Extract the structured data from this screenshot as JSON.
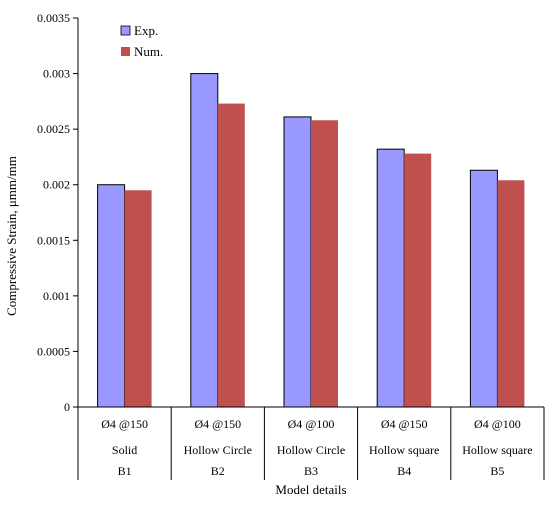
{
  "chart_data": {
    "type": "bar",
    "title": "",
    "xlabel": "Model details",
    "ylabel": "Compressive Strain, μmm/mm",
    "ylim": [
      0,
      0.0035
    ],
    "yticks": [
      0,
      0.0005,
      0.001,
      0.0015,
      0.002,
      0.0025,
      0.003,
      0.0035
    ],
    "ytick_labels": [
      "0",
      "0.0005",
      "0.001",
      "0.0015",
      "0.002",
      "0.0025",
      "0.003",
      "0.0035"
    ],
    "categories": [
      {
        "line1": "Ø4 @150",
        "line2": "Solid",
        "line3": "B1"
      },
      {
        "line1": "Ø4 @150",
        "line2": "Hollow Circle",
        "line3": "B2"
      },
      {
        "line1": "Ø4 @100",
        "line2": "Hollow Circle",
        "line3": "B3"
      },
      {
        "line1": "Ø4 @150",
        "line2": "Hollow square",
        "line3": "B4"
      },
      {
        "line1": "Ø4 @100",
        "line2": "Hollow square",
        "line3": "B5"
      }
    ],
    "series": [
      {
        "name": "Exp.",
        "color": "#9999ff",
        "values": [
          0.002,
          0.003,
          0.00261,
          0.00232,
          0.00213
        ]
      },
      {
        "name": "Num.",
        "color": "#c0504d",
        "values": [
          0.00195,
          0.00273,
          0.00258,
          0.00228,
          0.00204
        ]
      }
    ],
    "grid": false,
    "legend_position": "top-left"
  }
}
